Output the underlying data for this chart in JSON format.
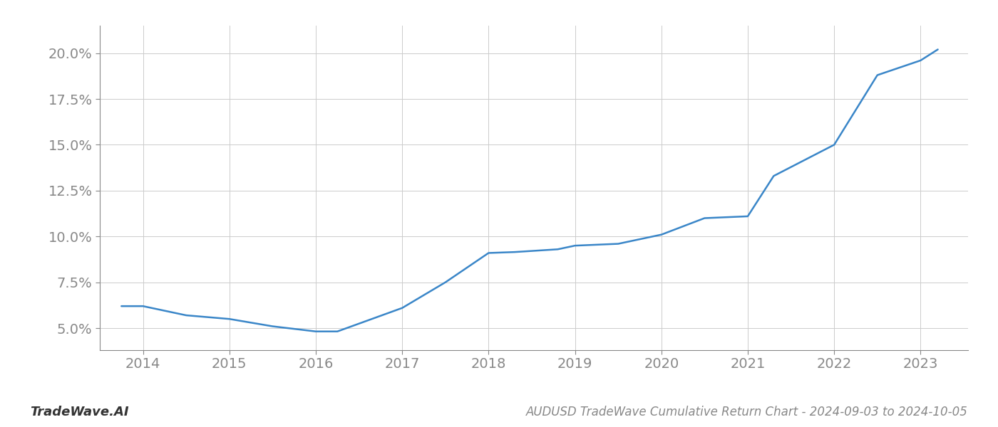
{
  "x_values": [
    2013.75,
    2014.0,
    2014.5,
    2015.0,
    2015.5,
    2016.0,
    2016.25,
    2017.0,
    2017.5,
    2018.0,
    2018.3,
    2018.8,
    2019.0,
    2019.5,
    2020.0,
    2020.5,
    2021.0,
    2021.3,
    2022.0,
    2022.5,
    2023.0,
    2023.2
  ],
  "y_values": [
    6.2,
    6.2,
    5.7,
    5.5,
    5.1,
    4.82,
    4.82,
    6.1,
    7.5,
    9.1,
    9.15,
    9.3,
    9.5,
    9.6,
    10.1,
    11.0,
    11.1,
    13.3,
    15.0,
    18.8,
    19.6,
    20.2
  ],
  "line_color": "#3a86c8",
  "background_color": "#ffffff",
  "grid_color": "#cccccc",
  "title": "AUDUSD TradeWave Cumulative Return Chart - 2024-09-03 to 2024-10-05",
  "watermark": "TradeWave.AI",
  "xlim": [
    2013.5,
    2023.55
  ],
  "ylim": [
    3.8,
    21.5
  ],
  "xticks": [
    2014,
    2015,
    2016,
    2017,
    2018,
    2019,
    2020,
    2021,
    2022,
    2023
  ],
  "yticks": [
    5.0,
    7.5,
    10.0,
    12.5,
    15.0,
    17.5,
    20.0
  ],
  "title_fontsize": 12,
  "watermark_fontsize": 13,
  "tick_fontsize": 14,
  "line_width": 1.8
}
